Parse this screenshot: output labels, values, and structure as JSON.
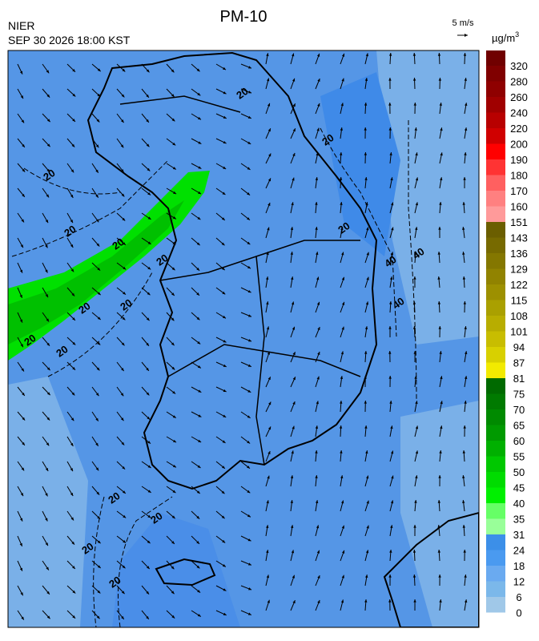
{
  "header": {
    "title": "PM-10",
    "agency": "NIER",
    "time": "SEP 30 2026 18:00 KST",
    "vector_scale": "5 m/s",
    "unit": "µg/m",
    "unit_power": "3"
  },
  "colorbar": {
    "levels": [
      320,
      280,
      260,
      240,
      220,
      200,
      190,
      180,
      170,
      160,
      151,
      143,
      136,
      129,
      122,
      115,
      108,
      101,
      94,
      87,
      81,
      75,
      70,
      65,
      60,
      55,
      50,
      45,
      40,
      35,
      31,
      24,
      18,
      12,
      6,
      0
    ],
    "colors": [
      "#700000",
      "#800000",
      "#8f0000",
      "#a00000",
      "#b80000",
      "#d00000",
      "#ff0000",
      "#ff3333",
      "#ff6060",
      "#ff8080",
      "#ff9a9a",
      "#6b5e00",
      "#776a00",
      "#847700",
      "#918300",
      "#9d9000",
      "#aaa000",
      "#b8ad00",
      "#c8bd00",
      "#d8d000",
      "#f2ea00",
      "#006a00",
      "#007a00",
      "#008a00",
      "#009a00",
      "#00b000",
      "#00c800",
      "#00dc00",
      "#00f000",
      "#66ff66",
      "#99ff99",
      "#3c8fe8",
      "#4a9af0",
      "#6aaaf0",
      "#7bb8ea",
      "#a0c8e8"
    ]
  },
  "contour_labels": [
    "20",
    "20",
    "20",
    "20",
    "20",
    "20",
    "20",
    "20",
    "20",
    "20",
    "20",
    "40",
    "40",
    "40",
    "20",
    "20",
    "20",
    "20"
  ]
}
